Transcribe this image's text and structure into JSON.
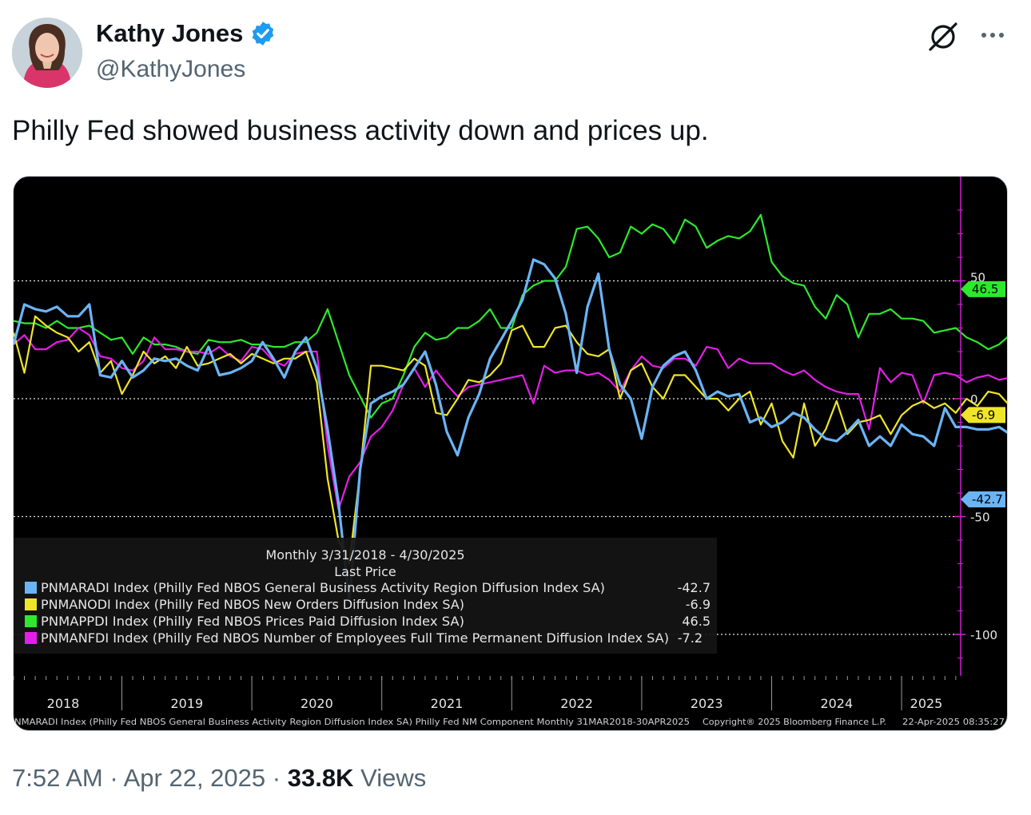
{
  "author": {
    "name": "Kathy Jones",
    "handle": "@KathyJones"
  },
  "tweet": {
    "text": "Philly Fed showed business activity down and prices up."
  },
  "footer": {
    "time": "7:52 AM",
    "separator1": "·",
    "date": "Apr 22, 2025",
    "separator2": "·",
    "views_count": "33.8K",
    "views_label": "Views"
  },
  "icons": {
    "verified": "verified-badge-icon",
    "grok": "grok-icon",
    "more": "more-options-icon"
  },
  "colors": {
    "verified": "#1d9bf0",
    "series_blue": "#6ab4f5",
    "series_yellow": "#f0e628",
    "series_green": "#2ee82e",
    "series_magenta": "#e41ee8"
  },
  "chart_data": {
    "type": "line",
    "background": "black",
    "ylim": [
      -120,
      85
    ],
    "y_ticks": [
      50,
      0,
      -50,
      -100
    ],
    "y_tick_labels": [
      "50",
      "0",
      "-50",
      "-100"
    ],
    "x_ticks": [
      "2018",
      "2019",
      "2020",
      "2021",
      "2022",
      "2023",
      "2024",
      "2025"
    ],
    "x_range": [
      "2018-03",
      "2025-04"
    ],
    "legend_placement": "bottom-left",
    "legend_title_line1": "Monthly 3/31/2018 - 4/30/2025",
    "legend_title_line2": "Last Price",
    "footnote_left": "PNMARADI Index (Philly Fed NBOS General Business Activity Region Diffusion Index SA) Philly Fed NM Component  Monthly 31MAR2018-30APR2025",
    "footnote_mid": "Copyright® 2025 Bloomberg Finance L.P.",
    "footnote_right": "22-Apr-2025 08:35:27",
    "series": [
      {
        "name": "PNMARADI Index (Philly Fed NBOS General Business Activity Region Diffusion Index SA)",
        "last": "-42.7",
        "color": "#6ab4f5",
        "values": [
          23,
          40,
          38,
          37,
          39,
          35,
          35,
          40,
          10,
          9,
          16,
          9,
          12,
          17,
          16,
          17,
          14,
          12,
          22,
          10,
          11,
          13,
          16,
          24,
          17,
          9,
          20,
          26,
          13,
          -13,
          -44,
          -86,
          -30,
          -2,
          1,
          3,
          6,
          13,
          20,
          6,
          -14,
          -24,
          -8,
          2,
          17,
          25,
          33,
          42,
          59,
          57,
          51,
          36,
          11,
          39,
          53,
          21,
          6,
          0,
          -17,
          5,
          14,
          18,
          20,
          12,
          0,
          3,
          1,
          2,
          -10,
          -8,
          -12,
          -10,
          -6,
          -8,
          -13,
          -17,
          -18,
          -14,
          -9,
          -20,
          -16,
          -20,
          -11,
          -15,
          -16,
          -20,
          -4,
          -12,
          -12,
          -13,
          -13,
          -12,
          -15,
          -5,
          -2,
          -1,
          -5,
          -20,
          -11,
          -5,
          -8,
          -5,
          -9,
          -11,
          -22,
          -32,
          -42.7
        ],
        "x_start": "2018-03"
      },
      {
        "name": "PNMANODI Index (Philly Fed NBOS New Orders Diffusion Index SA)",
        "last": "-6.9",
        "color": "#f0e628",
        "values": [
          28,
          11,
          35,
          31,
          28,
          26,
          20,
          24,
          11,
          16,
          2,
          10,
          20,
          15,
          18,
          13,
          22,
          14,
          15,
          17,
          19,
          15,
          19,
          17,
          15,
          17,
          17,
          20,
          7,
          -34,
          -60,
          -70,
          -31,
          14,
          14,
          13,
          12,
          17,
          14,
          -6,
          -7,
          0,
          8,
          7,
          10,
          15,
          29,
          31,
          22,
          22,
          30,
          31,
          24,
          19,
          18,
          21,
          0,
          12,
          15,
          5,
          0,
          10,
          10,
          5,
          0,
          0,
          -5,
          0,
          3,
          -11,
          -2,
          -18,
          -25,
          -2,
          -20,
          -13,
          -1,
          -15,
          -10,
          -9,
          -7,
          -15,
          -7,
          -3,
          -1,
          -4,
          -2,
          -6,
          0,
          -3,
          3,
          2,
          -3,
          -10,
          -19,
          10,
          5,
          0,
          -4,
          0,
          -2,
          -13,
          2,
          -19,
          -6.9
        ],
        "x_start": "2018-03"
      },
      {
        "name": "PNMAPPDI Index (Philly Fed NBOS Prices Paid Diffusion Index SA)",
        "last": "46.5",
        "color": "#2ee82e",
        "values": [
          33,
          32,
          32,
          30,
          33,
          30,
          30,
          31,
          28,
          25,
          26,
          19,
          26,
          23,
          23,
          22,
          20,
          19,
          25,
          24,
          24,
          25,
          23,
          23,
          22,
          22,
          24,
          24,
          28,
          38,
          24,
          10,
          1,
          -8,
          -2,
          0,
          10,
          22,
          28,
          25,
          26,
          30,
          30,
          33,
          38,
          30,
          30,
          44,
          48,
          50,
          50,
          56,
          72,
          73,
          68,
          60,
          62,
          73,
          70,
          74,
          72,
          66,
          76,
          73,
          64,
          67,
          69,
          68,
          71,
          78,
          58,
          52,
          49,
          48,
          39,
          34,
          44,
          40,
          26,
          36,
          36,
          38,
          34,
          34,
          33,
          28,
          29,
          30,
          26,
          24,
          21,
          23,
          27,
          27,
          25,
          20,
          26,
          31,
          28,
          23,
          31,
          30,
          25,
          26,
          30,
          36,
          46.5
        ],
        "x_start": "2018-03"
      },
      {
        "name": "PNMANFDI Index (Philly Fed NBOS Number of Employees Full Time Permanent Diffusion Index SA)",
        "last": "-7.2",
        "color": "#e41ee8",
        "values": [
          23,
          27,
          21,
          21,
          24,
          25,
          30,
          27,
          18,
          17,
          13,
          12,
          16,
          26,
          21,
          21,
          20,
          20,
          19,
          22,
          18,
          16,
          22,
          21,
          16,
          14,
          19,
          20,
          20,
          -20,
          -47,
          -33,
          -27,
          -16,
          -12,
          -5,
          6,
          13,
          5,
          12,
          6,
          1,
          5,
          6,
          7,
          8,
          9,
          10,
          -2,
          14,
          11,
          12,
          12,
          10,
          11,
          8,
          3,
          12,
          18,
          14,
          13,
          17,
          17,
          14,
          22,
          21,
          13,
          17,
          15,
          15,
          15,
          12,
          10,
          12,
          8,
          5,
          3,
          2,
          2,
          -13,
          13,
          7,
          11,
          10,
          -2,
          10,
          11,
          10,
          7,
          9,
          10,
          8,
          9,
          7,
          4,
          6,
          9,
          4,
          1,
          -2,
          11,
          8,
          9,
          8,
          7,
          4,
          -7.2
        ],
        "x_start": "2018-03"
      }
    ],
    "last_value_tags": [
      "46.5",
      "-6.9",
      "-42.7"
    ]
  }
}
